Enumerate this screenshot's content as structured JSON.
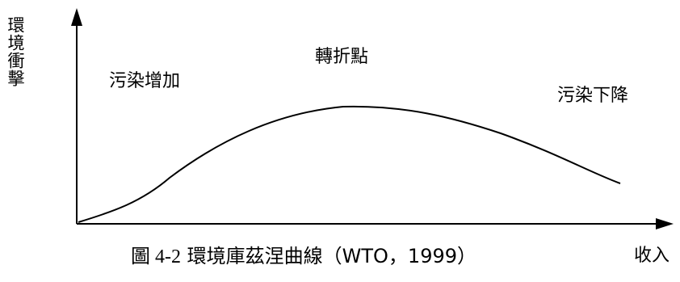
{
  "y_axis_label": "環境衝擊",
  "x_axis_label": "收入",
  "annotations": {
    "rising": "污染增加",
    "turning_point": "轉折點",
    "falling": "污染下降"
  },
  "caption": {
    "prefix": "圖 4-2",
    "title": "環境庫茲涅曲線（WTO，1999）"
  },
  "curve": {
    "shape": "inverted-U",
    "stroke_color": "#000000"
  },
  "axis_color": "#000000"
}
